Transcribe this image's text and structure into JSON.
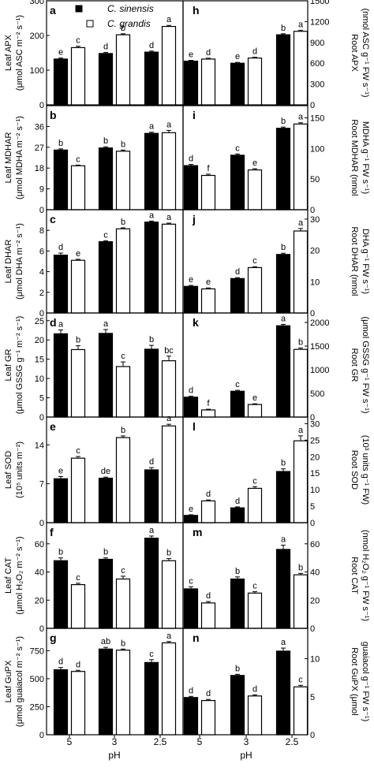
{
  "figure": {
    "legend": {
      "items": [
        {
          "label": "C. sinensis",
          "fill": "#000000"
        },
        {
          "label": "C. grandis",
          "fill": "#ffffff"
        }
      ],
      "placement": "top-left of panel a"
    },
    "xlabel": "pH",
    "categories": [
      "5",
      "3",
      "2.5"
    ]
  },
  "chart_data": [
    {
      "type": "bar",
      "panel": "a",
      "side": "left",
      "ylabel_line1": "Leaf APX",
      "ylabel_line2": "(μmol ASC m⁻² s⁻¹)",
      "ylim": [
        0,
        300
      ],
      "yticks": [
        0,
        100,
        200,
        300
      ],
      "categories": [
        "5",
        "3",
        "2.5"
      ],
      "series": [
        {
          "name": "C. sinensis",
          "values": [
            132,
            148,
            152
          ],
          "errors": [
            3,
            3,
            3
          ],
          "letters": [
            "e",
            "d",
            "d"
          ]
        },
        {
          "name": "C. grandis",
          "values": [
            165,
            202,
            226
          ],
          "errors": [
            4,
            3,
            3
          ],
          "letters": [
            "c",
            "b",
            "a"
          ]
        }
      ]
    },
    {
      "type": "bar",
      "panel": "h",
      "side": "right",
      "ylabel_line1": "Root APX",
      "ylabel_line2": "(nmol ASC g⁻¹ FW s⁻¹)",
      "ylim": [
        0,
        1500
      ],
      "yticks": [
        0,
        300,
        600,
        900,
        1200,
        1500
      ],
      "categories": [
        "5",
        "3",
        "2.5"
      ],
      "series": [
        {
          "name": "C. sinensis",
          "values": [
            630,
            600,
            1010
          ],
          "errors": [
            12,
            12,
            15
          ],
          "letters": [
            "e",
            "e",
            "b"
          ]
        },
        {
          "name": "C. grandis",
          "values": [
            660,
            675,
            1060
          ],
          "errors": [
            12,
            12,
            15
          ],
          "letters": [
            "d",
            "d",
            "a"
          ]
        }
      ]
    },
    {
      "type": "bar",
      "panel": "b",
      "side": "left",
      "ylabel_line1": "Leaf MDHAR",
      "ylabel_line2": "(μmol MDHA m⁻² s⁻¹)",
      "ylim": [
        0,
        45
      ],
      "yticks": [
        0,
        9,
        18,
        27,
        36
      ],
      "categories": [
        "5",
        "3",
        "2.5"
      ],
      "series": [
        {
          "name": "C. sinensis",
          "values": [
            25.8,
            26.7,
            33
          ],
          "errors": [
            0.5,
            0.5,
            0.5
          ],
          "letters": [
            "b",
            "b",
            "a"
          ]
        },
        {
          "name": "C. grandis",
          "values": [
            19,
            25.3,
            33.3
          ],
          "errors": [
            0.3,
            0.5,
            1
          ],
          "letters": [
            "c",
            "b",
            "a"
          ]
        }
      ]
    },
    {
      "type": "bar",
      "panel": "i",
      "side": "right",
      "ylabel_line1": "Root MDHAR (nmol",
      "ylabel_line2": "MDHA g⁻¹ FW s⁻¹)",
      "ylim": [
        0,
        170
      ],
      "yticks": [
        0,
        50,
        100,
        150
      ],
      "categories": [
        "5",
        "3",
        "2.5"
      ],
      "series": [
        {
          "name": "C. sinensis",
          "values": [
            72,
            89,
            133
          ],
          "errors": [
            2,
            2,
            2
          ],
          "letters": [
            "d",
            "c",
            "b"
          ]
        },
        {
          "name": "C. grandis",
          "values": [
            56,
            65,
            140
          ],
          "errors": [
            2,
            2,
            2
          ],
          "letters": [
            "f",
            "e",
            "a"
          ]
        }
      ]
    },
    {
      "type": "bar",
      "panel": "c",
      "side": "left",
      "ylabel_line1": "Leaf DHAR",
      "ylabel_line2": "(μmol DHA m⁻² s⁻¹)",
      "ylim": [
        0,
        10
      ],
      "yticks": [
        0,
        2,
        4,
        6,
        8
      ],
      "categories": [
        "5",
        "3",
        "2.5"
      ],
      "series": [
        {
          "name": "C. sinensis",
          "values": [
            5.6,
            6.9,
            8.8
          ],
          "errors": [
            0.2,
            0.1,
            0.1
          ],
          "letters": [
            "d",
            "c",
            "a"
          ]
        },
        {
          "name": "C. grandis",
          "values": [
            5.1,
            8.15,
            8.6
          ],
          "errors": [
            0.1,
            0.1,
            0.1
          ],
          "letters": [
            "e",
            "b",
            "a"
          ]
        }
      ]
    },
    {
      "type": "bar",
      "panel": "j",
      "side": "right",
      "ylabel_line1": "Root DHAR (nmol",
      "ylabel_line2": "DHA g⁻¹ FW s⁻¹)",
      "ylim": [
        0,
        33
      ],
      "yticks": [
        0,
        10,
        20,
        30
      ],
      "categories": [
        "5",
        "3",
        "2.5"
      ],
      "series": [
        {
          "name": "C. sinensis",
          "values": [
            8.5,
            11,
            18.7
          ],
          "errors": [
            0.3,
            0.3,
            0.4
          ],
          "letters": [
            "e",
            "d",
            "b"
          ]
        },
        {
          "name": "C. grandis",
          "values": [
            7.7,
            14.5,
            26.2
          ],
          "errors": [
            0.3,
            0.3,
            0.8
          ],
          "letters": [
            "e",
            "c",
            "a"
          ]
        }
      ]
    },
    {
      "type": "bar",
      "panel": "d",
      "side": "left",
      "ylabel_line1": "Leaf GR",
      "ylabel_line2": "(μmol GSSG g⁻¹ m⁻² s⁻¹)",
      "ylim": [
        0,
        27
      ],
      "yticks": [
        0,
        5,
        10,
        15,
        20,
        25
      ],
      "categories": [
        "5",
        "3",
        "2.5"
      ],
      "series": [
        {
          "name": "C. sinensis",
          "values": [
            21.6,
            21.7,
            17.6
          ],
          "errors": [
            1,
            1,
            1
          ],
          "letters": [
            "a",
            "a",
            "b"
          ]
        },
        {
          "name": "C. grandis",
          "values": [
            17.5,
            13.1,
            14.6
          ],
          "errors": [
            1,
            1.2,
            1.2
          ],
          "letters": [
            "b",
            "c",
            "bc"
          ]
        }
      ]
    },
    {
      "type": "bar",
      "panel": "k",
      "side": "right",
      "ylabel_line1": "Root GR",
      "ylabel_line2": "(μmol GSSG g⁻¹ FW s⁻¹)",
      "ylim": [
        0,
        2200
      ],
      "yticks": [
        0,
        500,
        1000,
        1500,
        2000
      ],
      "categories": [
        "5",
        "3",
        "2.5"
      ],
      "series": [
        {
          "name": "C. sinensis",
          "values": [
            420,
            545,
            1930
          ],
          "errors": [
            20,
            20,
            30
          ],
          "letters": [
            "d",
            "c",
            "a"
          ]
        },
        {
          "name": "C. grandis",
          "values": [
            150,
            265,
            1430
          ],
          "errors": [
            15,
            15,
            30
          ],
          "letters": [
            "f",
            "e",
            "b"
          ]
        }
      ]
    },
    {
      "type": "bar",
      "panel": "e",
      "side": "left",
      "ylabel_line1": "Leaf SOD",
      "ylabel_line2": "(10⁵ units m⁻²)",
      "ylim": [
        0,
        19
      ],
      "yticks": [
        0,
        7,
        14
      ],
      "categories": [
        "5",
        "3",
        "2.5"
      ],
      "series": [
        {
          "name": "C. sinensis",
          "values": [
            7.9,
            8.0,
            9.5
          ],
          "errors": [
            0.4,
            0.2,
            0.4
          ],
          "letters": [
            "e",
            "de",
            "d"
          ]
        },
        {
          "name": "C. grandis",
          "values": [
            11.6,
            15.3,
            17.4
          ],
          "errors": [
            0.3,
            0.3,
            0.3
          ],
          "letters": [
            "c",
            "b",
            "a"
          ]
        }
      ]
    },
    {
      "type": "bar",
      "panel": "l",
      "side": "right",
      "ylabel_line1": "Root SOD",
      "ylabel_line2": "(10³ units g⁻¹ FW)",
      "ylim": [
        0,
        32
      ],
      "yticks": [
        0,
        5,
        10,
        15,
        20,
        25,
        30
      ],
      "categories": [
        "5",
        "3",
        "2.5"
      ],
      "series": [
        {
          "name": "C. sinensis",
          "values": [
            2.2,
            4.5,
            15.5
          ],
          "errors": [
            0.2,
            0.3,
            0.8
          ],
          "letters": [
            "e",
            "d",
            "b"
          ]
        },
        {
          "name": "C. grandis",
          "values": [
            6.6,
            10.4,
            24.8
          ],
          "errors": [
            0.3,
            0.5,
            1.5
          ],
          "letters": [
            "d",
            "c",
            "a"
          ]
        }
      ]
    },
    {
      "type": "bar",
      "panel": "f",
      "side": "left",
      "ylabel_line1": "Leaf CAT",
      "ylabel_line2": "(μmol H₂O₂ m⁻² s⁻¹)",
      "ylim": [
        0,
        75
      ],
      "yticks": [
        0,
        20,
        40,
        60
      ],
      "categories": [
        "5",
        "3",
        "2.5"
      ],
      "series": [
        {
          "name": "C. sinensis",
          "values": [
            48,
            49,
            64
          ],
          "errors": [
            2,
            1,
            1.5
          ],
          "letters": [
            "b",
            "b",
            "a"
          ]
        },
        {
          "name": "C. grandis",
          "values": [
            31,
            35,
            48
          ],
          "errors": [
            1,
            2,
            1.5
          ],
          "letters": [
            "c",
            "c",
            "b"
          ]
        }
      ]
    },
    {
      "type": "bar",
      "panel": "m",
      "side": "right",
      "ylabel_line1": "Root CAT",
      "ylabel_line2": "(nmol H₂O₂ g⁻¹ FW s⁻¹)",
      "ylim": [
        0,
        75
      ],
      "yticks": [
        0,
        20,
        40,
        60
      ],
      "categories": [
        "5",
        "3",
        "2.5"
      ],
      "series": [
        {
          "name": "C. sinensis",
          "values": [
            28,
            35,
            56
          ],
          "errors": [
            1.5,
            1.5,
            3
          ],
          "letters": [
            "c",
            "b",
            "a"
          ]
        },
        {
          "name": "C. grandis",
          "values": [
            18,
            25,
            38
          ],
          "errors": [
            1,
            1,
            1
          ],
          "letters": [
            "d",
            "c",
            "b"
          ]
        }
      ]
    },
    {
      "type": "bar",
      "panel": "g",
      "side": "left",
      "ylabel_line1": "Leaf GuPX",
      "ylabel_line2": "(μmol guaiacol m⁻² s⁻¹)",
      "ylim": [
        0,
        950
      ],
      "yticks": [
        0,
        250,
        500,
        750
      ],
      "categories": [
        "5",
        "3",
        "2.5"
      ],
      "series": [
        {
          "name": "C. sinensis",
          "values": [
            580,
            765,
            645
          ],
          "errors": [
            20,
            15,
            25
          ],
          "letters": [
            "d",
            "ab",
            "c"
          ]
        },
        {
          "name": "C. grandis",
          "values": [
            565,
            755,
            820
          ],
          "errors": [
            10,
            10,
            12
          ],
          "letters": [
            "d",
            "b",
            "a"
          ]
        }
      ]
    },
    {
      "type": "bar",
      "panel": "n",
      "side": "right",
      "ylabel_line1": "Root GuPX (μmol",
      "ylabel_line2": "guaiacol g⁻¹ FW s⁻¹)",
      "ylim": [
        0,
        14
      ],
      "yticks": [
        0,
        5,
        10
      ],
      "categories": [
        "5",
        "3",
        "2.5"
      ],
      "series": [
        {
          "name": "C. sinensis",
          "values": [
            4.9,
            7.8,
            11
          ],
          "errors": [
            0.15,
            0.15,
            0.4
          ],
          "letters": [
            "d",
            "b",
            "a"
          ]
        },
        {
          "name": "C. grandis",
          "values": [
            4.5,
            5.1,
            6.3
          ],
          "errors": [
            0.15,
            0.15,
            0.2
          ],
          "letters": [
            "d",
            "d",
            "c"
          ]
        }
      ]
    }
  ]
}
